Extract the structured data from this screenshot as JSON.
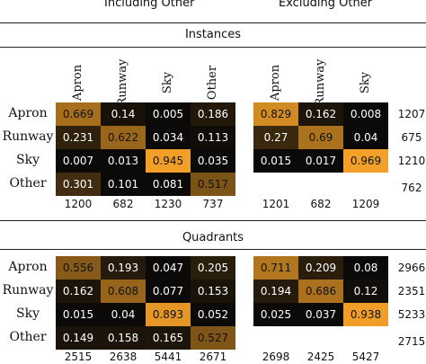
{
  "headers": {
    "left": "Including Other",
    "right": "Excluding Other"
  },
  "chart_data": [
    {
      "type": "heatmap",
      "title": "Instances",
      "row_labels": [
        "Apron",
        "Runway",
        "Sky",
        "Other"
      ],
      "col_labels_left": [
        "Apron",
        "Runway",
        "Sky",
        "Other"
      ],
      "col_labels_right": [
        "Apron",
        "Runway",
        "Sky"
      ],
      "left_values": [
        [
          "0.669",
          "0.14",
          "0.005",
          "0.186"
        ],
        [
          "0.231",
          "0.622",
          "0.034",
          "0.113"
        ],
        [
          "0.007",
          "0.013",
          "0.945",
          "0.035"
        ],
        [
          "0.301",
          "0.101",
          "0.081",
          "0.517"
        ]
      ],
      "left_col_totals": [
        "1200",
        "682",
        "1230",
        "737"
      ],
      "right_values": [
        [
          "0.829",
          "0.162",
          "0.008"
        ],
        [
          "0.27",
          "0.69",
          "0.04"
        ],
        [
          "0.015",
          "0.017",
          "0.969"
        ]
      ],
      "right_col_totals": [
        "1201",
        "682",
        "1209"
      ],
      "row_totals": [
        "1207",
        "675",
        "1210",
        "762"
      ]
    },
    {
      "type": "heatmap",
      "title": "Quadrants",
      "row_labels": [
        "Apron",
        "Runway",
        "Sky",
        "Other"
      ],
      "left_values": [
        [
          "0.556",
          "0.193",
          "0.047",
          "0.205"
        ],
        [
          "0.162",
          "0.608",
          "0.077",
          "0.153"
        ],
        [
          "0.015",
          "0.04",
          "0.893",
          "0.052"
        ],
        [
          "0.149",
          "0.158",
          "0.165",
          "0.527"
        ]
      ],
      "left_col_totals": [
        "2515",
        "2638",
        "5441",
        "2671"
      ],
      "right_values": [
        [
          "0.711",
          "0.209",
          "0.08"
        ],
        [
          "0.194",
          "0.686",
          "0.12"
        ],
        [
          "0.025",
          "0.037",
          "0.938"
        ]
      ],
      "right_col_totals": [
        "2698",
        "2425",
        "5427"
      ],
      "row_totals": [
        "2966",
        "2351",
        "5233",
        "2715"
      ]
    }
  ]
}
